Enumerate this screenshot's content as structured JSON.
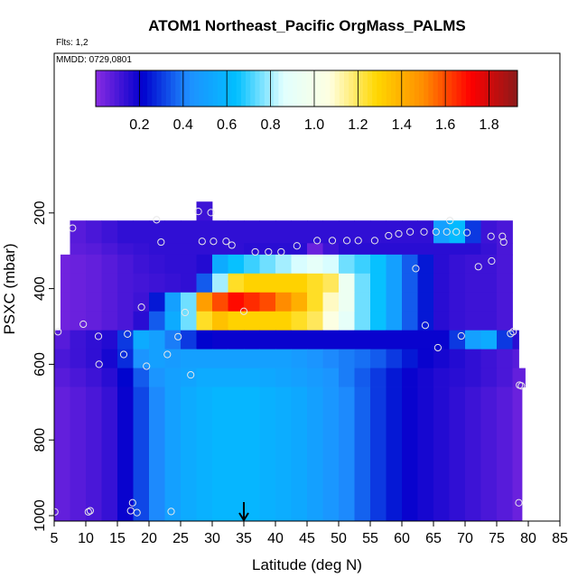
{
  "header": {
    "title": "ATOM1 Northeast_Pacific OrgMass_PALMS",
    "flights_note": "Flts: 1,2",
    "dates_note": "MMDD: 0729,0801"
  },
  "chart_data": {
    "type": "heatmap",
    "title": "ATOM1 Northeast_Pacific OrgMass_PALMS",
    "xlabel": "Latitude (deg N)",
    "ylabel": "PSXC (mbar)",
    "xlim": [
      5,
      85
    ],
    "ylim": [
      1000,
      0
    ],
    "x_ticks": [
      5,
      10,
      15,
      20,
      25,
      30,
      35,
      40,
      45,
      50,
      55,
      60,
      65,
      70,
      75,
      80,
      85
    ],
    "y_ticks": [
      200,
      400,
      600,
      800,
      1000
    ],
    "grid": false,
    "marker": {
      "latitude": 35,
      "pressure": 1000,
      "symbol": "arrow"
    },
    "colorbar": {
      "range": [
        0,
        1.93
      ],
      "ticks": [
        0.2,
        0.4,
        0.6,
        0.8,
        1.0,
        1.2,
        1.4,
        1.6,
        1.8
      ],
      "colors": [
        "#8a2be2",
        "#0000cd",
        "#1e90ff",
        "#00bfff",
        "#e0ffff",
        "#ffffe0",
        "#ffd700",
        "#ff8c00",
        "#ff0000",
        "#8b1a1a"
      ],
      "placement": "top"
    },
    "latitude_bins": [
      5,
      7.5,
      10,
      12.5,
      15,
      17.5,
      20,
      22.5,
      25,
      27.5,
      30,
      32.5,
      35,
      37.5,
      40,
      42.5,
      45,
      47.5,
      50,
      52.5,
      55,
      57.5,
      60,
      62.5,
      65,
      67.5,
      70,
      72.5,
      75,
      77.5
    ],
    "pressure_layers": [
      {
        "p_top": 170,
        "p_bottom": 220,
        "lat_min": 27.5,
        "lat_max": 30,
        "values": [
          0.12
        ]
      },
      {
        "p_top": 220,
        "p_bottom": 280,
        "lat_min": 7.5,
        "lat_max": 77.5,
        "values": [
          0.05,
          0.08,
          0.1,
          0.12,
          0.14,
          0.14,
          0.14,
          0.14,
          0.14,
          0.14,
          0.14,
          0.14,
          0.14,
          0.14,
          0.14,
          0.14,
          0.14,
          0.14,
          0.14,
          0.14,
          0.14,
          0.14,
          0.14,
          0.14,
          0.5,
          0.62,
          0.3,
          0.12,
          0.1,
          0.1
        ]
      },
      {
        "p_top": 280,
        "p_bottom": 310,
        "lat_min": 7.5,
        "lat_max": 77.5,
        "values": [
          0.05,
          0.07,
          0.08,
          0.1,
          0.12,
          0.13,
          0.14,
          0.14,
          0.14,
          0.14,
          0.14,
          0.14,
          0.15,
          0.15,
          0.15,
          0.15,
          0.05,
          0.12,
          0.15,
          0.15,
          0.15,
          0.15,
          0.15,
          0.15,
          0.15,
          0.15,
          0.15,
          0.13,
          0.1,
          0.1
        ]
      },
      {
        "p_top": 310,
        "p_bottom": 360,
        "lat_min": 6,
        "lat_max": 77.5,
        "values": [
          0.04,
          0.05,
          0.06,
          0.08,
          0.1,
          0.12,
          0.13,
          0.14,
          0.14,
          0.16,
          0.55,
          0.65,
          0.7,
          0.75,
          0.8,
          0.85,
          0.9,
          0.85,
          0.75,
          0.7,
          0.65,
          0.5,
          0.35,
          0.25,
          0.15,
          0.13,
          0.12,
          0.12,
          0.1,
          0.08
        ]
      },
      {
        "p_top": 360,
        "p_bottom": 410,
        "lat_min": 6,
        "lat_max": 77.5,
        "values": [
          0.04,
          0.05,
          0.06,
          0.08,
          0.1,
          0.11,
          0.12,
          0.13,
          0.14,
          0.35,
          0.8,
          1.25,
          1.3,
          1.3,
          1.3,
          1.3,
          1.25,
          1.2,
          0.95,
          0.75,
          0.65,
          0.5,
          0.35,
          0.25,
          0.15,
          0.13,
          0.12,
          0.12,
          0.1,
          0.08
        ]
      },
      {
        "p_top": 410,
        "p_bottom": 460,
        "lat_min": 6,
        "lat_max": 77.5,
        "values": [
          0.04,
          0.05,
          0.06,
          0.08,
          0.1,
          0.12,
          0.25,
          0.5,
          0.75,
          1.45,
          1.6,
          1.7,
          1.65,
          1.6,
          1.5,
          1.4,
          1.25,
          1.1,
          0.95,
          0.75,
          0.65,
          0.5,
          0.35,
          0.25,
          0.15,
          0.13,
          0.12,
          0.12,
          0.1,
          0.08
        ]
      },
      {
        "p_top": 460,
        "p_bottom": 510,
        "lat_min": 6,
        "lat_max": 77.5,
        "values": [
          0.04,
          0.05,
          0.06,
          0.08,
          0.1,
          0.15,
          0.35,
          0.55,
          0.75,
          1.25,
          1.35,
          1.3,
          1.3,
          1.3,
          1.3,
          1.25,
          1.2,
          1.05,
          0.9,
          0.75,
          0.65,
          0.5,
          0.35,
          0.25,
          0.15,
          0.13,
          0.12,
          0.12,
          0.1,
          0.08
        ]
      },
      {
        "p_top": 510,
        "p_bottom": 560,
        "lat_min": 5,
        "lat_max": 78.5,
        "values": [
          0.08,
          0.12,
          0.14,
          0.16,
          0.3,
          0.55,
          0.5,
          0.4,
          0.3,
          0.22,
          0.2,
          0.2,
          0.2,
          0.2,
          0.2,
          0.2,
          0.2,
          0.2,
          0.2,
          0.2,
          0.2,
          0.2,
          0.2,
          0.2,
          0.2,
          0.3,
          0.5,
          0.55,
          0.3,
          0.15
        ]
      },
      {
        "p_top": 560,
        "p_bottom": 610,
        "lat_min": 5,
        "lat_max": 78.5,
        "values": [
          0.1,
          0.12,
          0.14,
          0.18,
          0.28,
          0.45,
          0.5,
          0.48,
          0.5,
          0.5,
          0.5,
          0.5,
          0.5,
          0.5,
          0.5,
          0.48,
          0.45,
          0.42,
          0.4,
          0.38,
          0.35,
          0.3,
          0.25,
          0.2,
          0.18,
          0.16,
          0.14,
          0.12,
          0.1,
          0.08
        ]
      },
      {
        "p_top": 610,
        "p_bottom": 660,
        "lat_min": 5,
        "lat_max": 79.5,
        "values": [
          0.08,
          0.1,
          0.12,
          0.15,
          0.22,
          0.35,
          0.45,
          0.5,
          0.52,
          0.55,
          0.55,
          0.55,
          0.55,
          0.54,
          0.52,
          0.5,
          0.48,
          0.45,
          0.4,
          0.35,
          0.3,
          0.25,
          0.2,
          0.18,
          0.16,
          0.15,
          0.14,
          0.12,
          0.1,
          0.06
        ]
      },
      {
        "p_top": 660,
        "p_bottom": 1000,
        "lat_min": 5,
        "lat_max": 79,
        "values": [
          0.06,
          0.08,
          0.1,
          0.13,
          0.2,
          0.32,
          0.42,
          0.5,
          0.55,
          0.58,
          0.6,
          0.6,
          0.6,
          0.58,
          0.56,
          0.54,
          0.5,
          0.46,
          0.42,
          0.36,
          0.3,
          0.25,
          0.2,
          0.18,
          0.16,
          0.14,
          0.12,
          0.1,
          0.08,
          0.05
        ]
      }
    ],
    "sample_points": [
      {
        "lat": 27.8,
        "p": 196
      },
      {
        "lat": 29.8,
        "p": 199
      },
      {
        "lat": 21.2,
        "p": 218
      },
      {
        "lat": 67.6,
        "p": 220
      },
      {
        "lat": 7.9,
        "p": 240
      },
      {
        "lat": 59.5,
        "p": 255
      },
      {
        "lat": 61.3,
        "p": 250
      },
      {
        "lat": 63.5,
        "p": 250
      },
      {
        "lat": 65.4,
        "p": 250
      },
      {
        "lat": 67.1,
        "p": 250
      },
      {
        "lat": 68.6,
        "p": 250
      },
      {
        "lat": 70.3,
        "p": 252
      },
      {
        "lat": 74.1,
        "p": 262
      },
      {
        "lat": 75.9,
        "p": 262
      },
      {
        "lat": 57.9,
        "p": 260
      },
      {
        "lat": 28.4,
        "p": 275
      },
      {
        "lat": 30.2,
        "p": 275
      },
      {
        "lat": 32.2,
        "p": 275
      },
      {
        "lat": 33.1,
        "p": 285
      },
      {
        "lat": 21.9,
        "p": 277
      },
      {
        "lat": 76.1,
        "p": 277
      },
      {
        "lat": 36.8,
        "p": 303
      },
      {
        "lat": 38.9,
        "p": 303
      },
      {
        "lat": 40.9,
        "p": 303
      },
      {
        "lat": 43.4,
        "p": 287
      },
      {
        "lat": 46.6,
        "p": 273
      },
      {
        "lat": 49,
        "p": 273
      },
      {
        "lat": 51.3,
        "p": 273
      },
      {
        "lat": 53.1,
        "p": 273
      },
      {
        "lat": 55.7,
        "p": 273
      },
      {
        "lat": 74.2,
        "p": 327
      },
      {
        "lat": 72.1,
        "p": 342
      },
      {
        "lat": 62.2,
        "p": 347
      },
      {
        "lat": 18.8,
        "p": 449
      },
      {
        "lat": 25.7,
        "p": 463
      },
      {
        "lat": 35,
        "p": 460
      },
      {
        "lat": 9.6,
        "p": 494
      },
      {
        "lat": 63.7,
        "p": 497
      },
      {
        "lat": 5.6,
        "p": 514
      },
      {
        "lat": 77.6,
        "p": 514
      },
      {
        "lat": 77.2,
        "p": 519
      },
      {
        "lat": 12,
        "p": 526
      },
      {
        "lat": 16.6,
        "p": 520
      },
      {
        "lat": 24.6,
        "p": 527
      },
      {
        "lat": 69.4,
        "p": 525
      },
      {
        "lat": 65.7,
        "p": 556
      },
      {
        "lat": 16,
        "p": 574
      },
      {
        "lat": 22.9,
        "p": 574
      },
      {
        "lat": 12.1,
        "p": 600
      },
      {
        "lat": 19.6,
        "p": 605
      },
      {
        "lat": 26.6,
        "p": 628
      },
      {
        "lat": 78.6,
        "p": 655
      },
      {
        "lat": 78.9,
        "p": 657
      },
      {
        "lat": 17.4,
        "p": 966
      },
      {
        "lat": 78.5,
        "p": 966
      },
      {
        "lat": 10.7,
        "p": 987
      },
      {
        "lat": 10.4,
        "p": 990
      },
      {
        "lat": 17.1,
        "p": 987
      },
      {
        "lat": 18.1,
        "p": 992
      },
      {
        "lat": 23.5,
        "p": 989
      },
      {
        "lat": 5.1,
        "p": 990
      }
    ]
  }
}
